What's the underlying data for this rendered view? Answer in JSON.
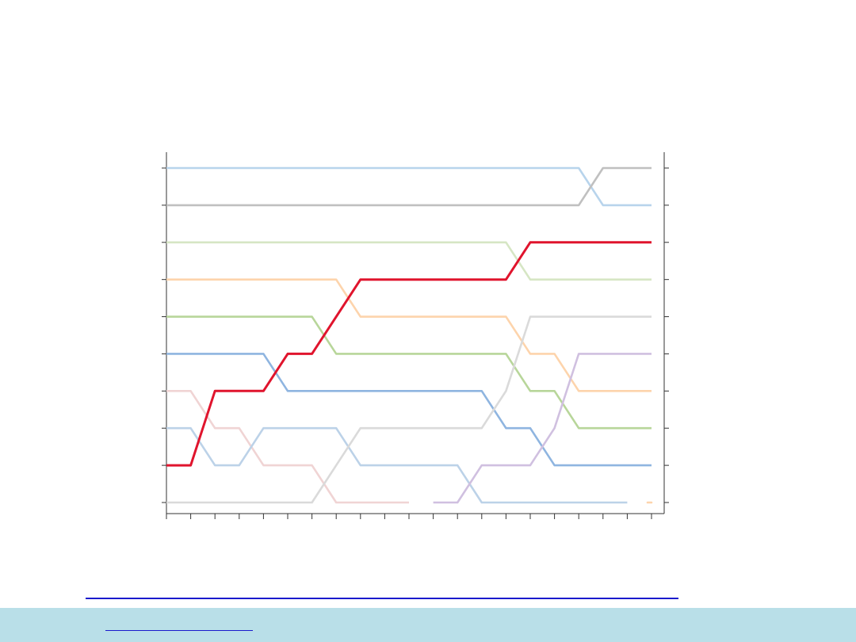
{
  "chart_data": {
    "type": "line",
    "title": "",
    "xlabel": "",
    "ylabel": "",
    "x": [
      1,
      2,
      3,
      4,
      5,
      6,
      7,
      8,
      9,
      10,
      11,
      12,
      13,
      14,
      15,
      16,
      17,
      18,
      19,
      20,
      21
    ],
    "ylim": [
      1,
      10
    ],
    "y_axis_inverted_rank": true,
    "grid": false,
    "legend": "none",
    "series": [
      {
        "color": "#e0142d",
        "highlight": true,
        "values": [
          9,
          9,
          7,
          7,
          7,
          6,
          6,
          5,
          4,
          4,
          4,
          4,
          4,
          4,
          4,
          3,
          3,
          3,
          3,
          3,
          3
        ]
      },
      {
        "color": "#b8d4ec",
        "values": [
          1,
          1,
          1,
          1,
          1,
          1,
          1,
          1,
          1,
          1,
          1,
          1,
          1,
          1,
          1,
          1,
          1,
          1,
          2,
          2,
          2
        ]
      },
      {
        "color": "#c0c0c0",
        "values": [
          2,
          2,
          2,
          2,
          2,
          2,
          2,
          2,
          2,
          2,
          2,
          2,
          2,
          2,
          2,
          2,
          2,
          2,
          1,
          1,
          1
        ]
      },
      {
        "color": "#d6e6c4",
        "values": [
          3,
          3,
          3,
          3,
          3,
          3,
          3,
          3,
          3,
          3,
          3,
          3,
          3,
          3,
          3,
          4,
          4,
          4,
          4,
          4,
          4
        ]
      },
      {
        "color": "#fdd4ac",
        "values": [
          4,
          4,
          4,
          4,
          4,
          4,
          4,
          4,
          5,
          5,
          5,
          5,
          5,
          5,
          5,
          6,
          6,
          7,
          7,
          7,
          7
        ]
      },
      {
        "color": "#b8d69a",
        "values": [
          5,
          5,
          5,
          5,
          5,
          5,
          5,
          6,
          6,
          6,
          6,
          6,
          6,
          6,
          6,
          7,
          7,
          8,
          8,
          8,
          8
        ]
      },
      {
        "color": "#8fb5e0",
        "values": [
          6,
          6,
          6,
          6,
          6,
          7,
          7,
          7,
          7,
          7,
          7,
          7,
          7,
          7,
          8,
          8,
          9,
          9,
          9,
          9,
          9
        ]
      },
      {
        "color": "#f0d4d4",
        "values": [
          7,
          7,
          8,
          8,
          9,
          9,
          9,
          10,
          10,
          10,
          10,
          null,
          null,
          null,
          null,
          null,
          null,
          null,
          null,
          null,
          null
        ]
      },
      {
        "color": "#bcd2e8",
        "values": [
          8,
          8,
          9,
          9,
          8,
          8,
          8,
          8,
          9,
          9,
          9,
          9,
          9,
          10,
          10,
          10,
          10,
          10,
          10,
          10,
          null
        ]
      },
      {
        "color": "#dadada",
        "values": [
          10,
          10,
          10,
          10,
          10,
          10,
          10,
          9,
          8,
          8,
          8,
          8,
          8,
          8,
          7,
          5,
          5,
          5,
          5,
          5,
          5
        ]
      },
      {
        "color": "#d0c0e0",
        "values": [
          null,
          null,
          null,
          null,
          null,
          null,
          null,
          null,
          null,
          null,
          null,
          10,
          10,
          9,
          9,
          9,
          8,
          6,
          6,
          6,
          6
        ]
      },
      {
        "color": "#fdd4ac",
        "values": [
          null,
          null,
          null,
          null,
          null,
          null,
          null,
          null,
          null,
          null,
          null,
          null,
          null,
          null,
          null,
          null,
          null,
          null,
          null,
          null,
          10
        ]
      }
    ]
  }
}
